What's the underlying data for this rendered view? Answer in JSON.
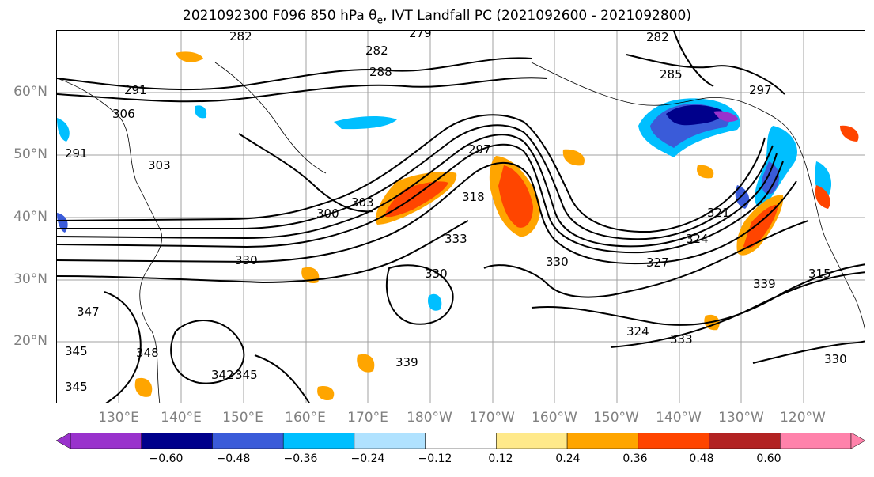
{
  "title": "2021092300 F096 850 hPa θ",
  "title_sub": "e",
  "title_rest": ", IVT Landfall PC (2021092600 - 2021092800)",
  "lat_labels": [
    "60°N",
    "50°N",
    "40°N",
    "30°N",
    "20°N"
  ],
  "lon_labels": [
    "130°E",
    "140°E",
    "150°E",
    "160°E",
    "170°E",
    "180°W",
    "170°W",
    "160°W",
    "150°W",
    "140°W",
    "130°W",
    "120°W"
  ],
  "contour_labels": [
    "282",
    "282",
    "282",
    "279",
    "288",
    "291",
    "291",
    "306",
    "303",
    "297",
    "300",
    "303",
    "318",
    "330",
    "333",
    "330",
    "339",
    "330",
    "347",
    "348",
    "345",
    "342",
    "345",
    "324",
    "327",
    "333",
    "321",
    "324",
    "315",
    "297",
    "285",
    "330",
    "339",
    "345"
  ],
  "colorbar": {
    "ticks": [
      "−0.60",
      "−0.48",
      "−0.36",
      "−0.24",
      "−0.12",
      "0.12",
      "0.24",
      "0.36",
      "0.48",
      "0.60"
    ],
    "colors": [
      "#9932cc",
      "#00008b",
      "#3a5bd9",
      "#00bfff",
      "#b0e2ff",
      "#ffffff",
      "#ffe98a",
      "#ffa500",
      "#ff4500",
      "#b22222",
      "#ff82ab"
    ]
  }
}
